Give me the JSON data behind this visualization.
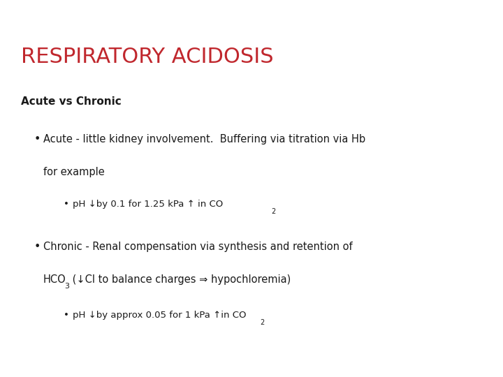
{
  "title": "RESPIRATORY ACIDOSIS",
  "title_color": "#C0272D",
  "title_fontsize": 22,
  "background_color": "#FFFFFF",
  "right_bar_color": "#B22222",
  "subtitle": "Acute vs Chronic",
  "subtitle_fontsize": 11,
  "text_color": "#1A1A1A",
  "main_fontsize": 10.5,
  "sub_fontsize": 9.5,
  "bullet1_line1": "Acute - little kidney involvement.  Buffering via titration via Hb",
  "bullet1_line2": "for example",
  "sub_bullet1_main": "pH ↓by 0.1 for 1.25 kPa ↑ in CO",
  "sub_bullet1_sub": "2",
  "bullet2_line1": "Chronic - Renal compensation via synthesis and retention of",
  "bullet2_hco_pre": "HCO",
  "bullet2_hco_sub": "3",
  "bullet2_hco_post": " (↓Cl to balance charges ⇒ hypochloremia)",
  "sub_bullet2_main": "pH ↓by approx 0.05 for 1 kPa ↑in CO",
  "sub_bullet2_sub": "2"
}
